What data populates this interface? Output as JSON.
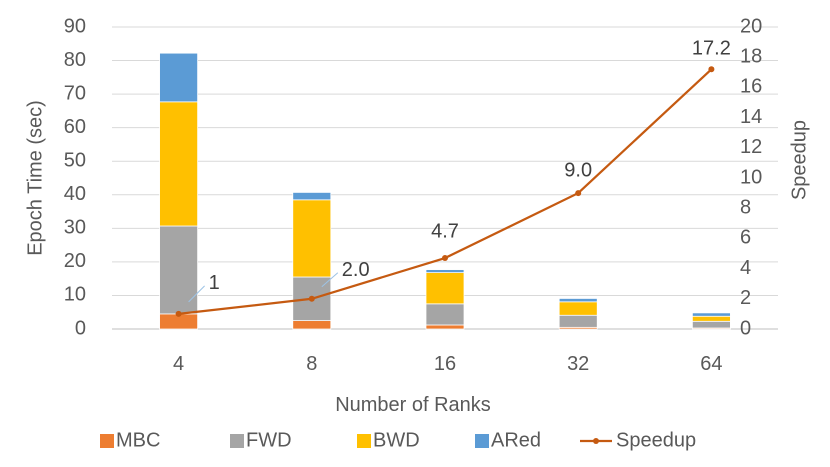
{
  "chart_data": {
    "type": "bar",
    "stacked": true,
    "categories": [
      "4",
      "8",
      "16",
      "32",
      "64"
    ],
    "series": [
      {
        "name": "MBC",
        "color": "#ED7D31",
        "values": [
          4.5,
          2.5,
          1.2,
          0.5,
          0.3
        ]
      },
      {
        "name": "FWD",
        "color": "#A5A5A5",
        "values": [
          26.2,
          13.0,
          6.3,
          3.6,
          2.0
        ]
      },
      {
        "name": "BWD",
        "color": "#FFC000",
        "values": [
          37.0,
          23.0,
          9.3,
          4.0,
          1.5
        ]
      },
      {
        "name": "ARed",
        "color": "#5B9BD5",
        "values": [
          14.5,
          2.2,
          0.9,
          1.0,
          1.0
        ]
      }
    ],
    "line_series": {
      "name": "Speedup",
      "color": "#C55A11",
      "values": [
        1,
        2.0,
        4.7,
        9.0,
        17.2
      ],
      "labels": [
        "1",
        "2.0",
        "4.7",
        "9.0",
        "17.2"
      ],
      "axis": "right"
    },
    "xlabel": "Number of Ranks",
    "ylabel": "Epoch Time (sec)",
    "y2label": "Speedup",
    "ylim": [
      0,
      90
    ],
    "y2lim": [
      0,
      20
    ],
    "yticks": [
      "0",
      "10",
      "20",
      "30",
      "40",
      "50",
      "60",
      "70",
      "80",
      "90"
    ],
    "y2ticks": [
      "0",
      "2",
      "4",
      "6",
      "8",
      "10",
      "12",
      "14",
      "16",
      "18",
      "20"
    ],
    "grid": true,
    "legend": "bottom"
  }
}
